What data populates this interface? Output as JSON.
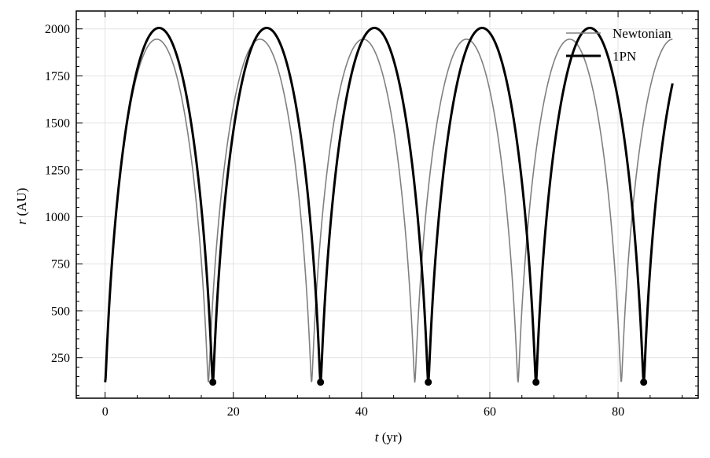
{
  "chart_data": {
    "type": "line",
    "title": "",
    "xlabel": "t (yr)",
    "xlabel_var": "t",
    "xlabel_unit": "(yr)",
    "ylabel": "r (AU)",
    "ylabel_var": "r",
    "ylabel_unit": "(AU)",
    "xlim": [
      -4.5,
      92.5
    ],
    "ylim": [
      35,
      2095
    ],
    "xticks": [
      0,
      20,
      40,
      60,
      80
    ],
    "yticks": [
      250,
      500,
      750,
      1000,
      1250,
      1500,
      1750,
      2000
    ],
    "grid": true,
    "legend_position": "top-right",
    "series": [
      {
        "name": "Newtonian",
        "color": "#808080",
        "style": "thin",
        "orbit": {
          "t0": 0,
          "period": 16.1,
          "r_min": 120,
          "r_max": 1945,
          "t_end": 88.5
        }
      },
      {
        "name": "1PN",
        "color": "#000000",
        "style": "thick",
        "orbit": {
          "t0": 0,
          "period": 16.8,
          "r_min": 120,
          "r_max": 2005,
          "t_end": 88.5
        },
        "markers": {
          "x": [
            16.8,
            33.6,
            50.4,
            67.2,
            84.0
          ],
          "y": [
            120,
            120,
            120,
            120,
            120
          ]
        }
      }
    ]
  }
}
